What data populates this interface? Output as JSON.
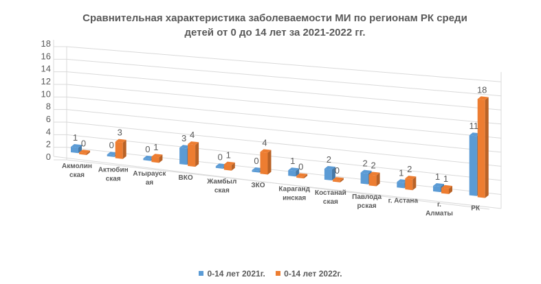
{
  "chart_data": {
    "type": "bar",
    "title_lines": [
      "Сравнительная характеристика заболеваемости МИ по регионам РК среди",
      "детей от 0 до 14 лет за  2021-2022 гг."
    ],
    "categories": [
      [
        "Акмолин",
        "ская"
      ],
      [
        "Актюбин",
        "ская"
      ],
      [
        "Атырауск",
        "ая"
      ],
      [
        "ВКО"
      ],
      [
        "Жамбыл",
        "ская"
      ],
      [
        "ЗКО"
      ],
      [
        "Караганд",
        "инская"
      ],
      [
        "Костанай",
        "ская"
      ],
      [
        "Павлода",
        "рская"
      ],
      [
        "г. Астана"
      ],
      [
        "г.",
        "Алматы"
      ],
      [
        "РК"
      ]
    ],
    "series": [
      {
        "name": "0-14 лет 2021г.",
        "values": [
          1,
          0,
          0,
          3,
          0,
          0,
          1,
          2,
          2,
          1,
          1,
          11
        ]
      },
      {
        "name": "0-14 лет 2022г.",
        "values": [
          0,
          3,
          1,
          4,
          1,
          4,
          0,
          0,
          2,
          2,
          1,
          18
        ]
      }
    ],
    "y_ticks": [
      0,
      2,
      4,
      6,
      8,
      10,
      12,
      14,
      16,
      18
    ],
    "ylim": [
      0,
      18
    ],
    "grid": true,
    "legend_position": "bottom",
    "colors": {
      "series_2021": "#5B9BD5",
      "series_2022": "#ED7D31",
      "grid": "#D9D9D9",
      "text": "#595959"
    }
  }
}
